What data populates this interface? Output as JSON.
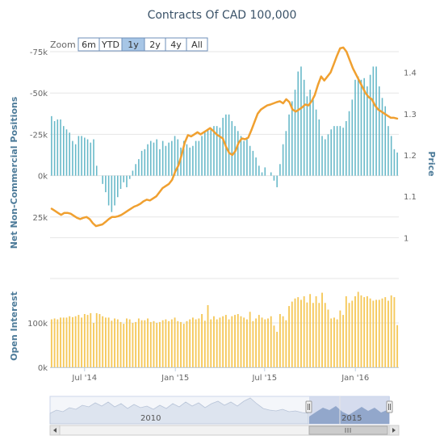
{
  "chart_data": {
    "type": "bar+line",
    "title": "Contracts Of CAD 100,000",
    "zoom": {
      "label": "Zoom",
      "buttons": [
        "6m",
        "YTD",
        "1y",
        "2y",
        "4y",
        "All"
      ],
      "selected": "1y"
    },
    "x_labels": [
      "Jul '14",
      "Jan '15",
      "Jul '15",
      "Jan '16"
    ],
    "x_label_dates": [
      "2014-07-01",
      "2015-01-01",
      "2015-07-01",
      "2016-01-01"
    ],
    "x_range": [
      "2014-04-22",
      "2016-03-29"
    ],
    "positions_panel": {
      "y_axis_title": "Net Non-Commercial Positions",
      "y_ticks": [
        "-75k",
        "-50k",
        "-25k",
        "0k",
        "25k"
      ],
      "y_tick_values": [
        -75000,
        -50000,
        -25000,
        0,
        25000
      ],
      "y_range": [
        -75000,
        50000
      ],
      "y_reversed": true,
      "bar_color": "#66b8c8",
      "series_values_k": [
        -36,
        -33,
        -34,
        -34,
        -30,
        -28,
        -26,
        -21,
        -19,
        -24,
        -24,
        -23,
        -22,
        -20,
        -22,
        -6,
        0,
        5,
        10,
        18,
        22,
        18,
        13,
        8,
        4,
        7,
        2,
        -3,
        -7,
        -10,
        -15,
        -16,
        -19,
        -21,
        -20,
        -22,
        -16,
        -21,
        -18,
        -20,
        -21,
        -24,
        -22,
        -17,
        -21,
        -19,
        -17,
        -18,
        -21,
        -21,
        -24,
        -27,
        -28,
        -28,
        -30,
        -30,
        -29,
        -35,
        -37,
        -37,
        -33,
        -30,
        -27,
        -24,
        -21,
        -22,
        -18,
        -15,
        -11,
        -6,
        -2,
        -5,
        0,
        -2,
        3,
        7,
        -7,
        -19,
        -27,
        -37,
        -45,
        -52,
        -63,
        -66,
        -58,
        -48,
        -52,
        -46,
        -40,
        -34,
        -24,
        -22,
        -25,
        -28,
        -30,
        -30,
        -30,
        -29,
        -33,
        -39,
        -46,
        -58,
        -60,
        -58,
        -59,
        -54,
        -61,
        -66,
        -66,
        -54,
        -47,
        -42,
        -30,
        -24,
        -16,
        -14
      ],
      "price_axis_title": "Price",
      "price_ticks": [
        "1.4",
        "1.3",
        "1.2",
        "1.1",
        "1"
      ],
      "price_tick_values": [
        1.4,
        1.3,
        1.2,
        1.1,
        1.0
      ],
      "price_range": [
        0.95,
        1.45
      ],
      "line_color": "#f0a030",
      "price_values": [
        1.07,
        1.065,
        1.06,
        1.055,
        1.06,
        1.06,
        1.058,
        1.053,
        1.048,
        1.045,
        1.048,
        1.05,
        1.045,
        1.035,
        1.028,
        1.03,
        1.032,
        1.038,
        1.045,
        1.05,
        1.05,
        1.052,
        1.055,
        1.06,
        1.065,
        1.07,
        1.075,
        1.078,
        1.082,
        1.088,
        1.092,
        1.09,
        1.095,
        1.1,
        1.11,
        1.12,
        1.125,
        1.13,
        1.14,
        1.16,
        1.175,
        1.2,
        1.23,
        1.248,
        1.245,
        1.25,
        1.255,
        1.25,
        1.255,
        1.26,
        1.265,
        1.258,
        1.25,
        1.245,
        1.24,
        1.22,
        1.205,
        1.2,
        1.21,
        1.23,
        1.24,
        1.238,
        1.242,
        1.26,
        1.28,
        1.3,
        1.31,
        1.315,
        1.32,
        1.322,
        1.325,
        1.328,
        1.33,
        1.325,
        1.335,
        1.328,
        1.31,
        1.305,
        1.31,
        1.315,
        1.322,
        1.32,
        1.33,
        1.345,
        1.37,
        1.39,
        1.38,
        1.39,
        1.4,
        1.42,
        1.44,
        1.458,
        1.46,
        1.45,
        1.43,
        1.41,
        1.395,
        1.38,
        1.365,
        1.35,
        1.34,
        1.335,
        1.32,
        1.31,
        1.305,
        1.3,
        1.295,
        1.29,
        1.29,
        1.288
      ]
    },
    "open_interest_panel": {
      "y_axis_title": "Open Interest",
      "y_ticks": [
        "100k",
        "0k"
      ],
      "y_tick_values": [
        100000,
        0
      ],
      "y_range": [
        0,
        200000
      ],
      "bar_color": "#f5c85a",
      "values_k": [
        108,
        110,
        108,
        112,
        112,
        112,
        115,
        113,
        115,
        118,
        112,
        120,
        118,
        122,
        100,
        122,
        120,
        115,
        112,
        112,
        105,
        110,
        108,
        102,
        98,
        110,
        108,
        100,
        102,
        110,
        106,
        106,
        110,
        102,
        104,
        100,
        102,
        106,
        108,
        104,
        108,
        112,
        104,
        102,
        98,
        104,
        108,
        112,
        108,
        110,
        120,
        105,
        140,
        108,
        115,
        108,
        112,
        115,
        118,
        108,
        115,
        118,
        120,
        115,
        112,
        108,
        125,
        104,
        110,
        118,
        112,
        108,
        110,
        115,
        94,
        80,
        120,
        115,
        106,
        138,
        148,
        155,
        158,
        152,
        160,
        146,
        165,
        145,
        160,
        145,
        168,
        145,
        130,
        110,
        112,
        108,
        128,
        118,
        160,
        145,
        150,
        160,
        170,
        162,
        158,
        160,
        155,
        150,
        152,
        152,
        155,
        158,
        150,
        162,
        158,
        95
      ]
    },
    "navigator": {
      "year_labels": [
        "2010",
        "2015"
      ]
    }
  }
}
